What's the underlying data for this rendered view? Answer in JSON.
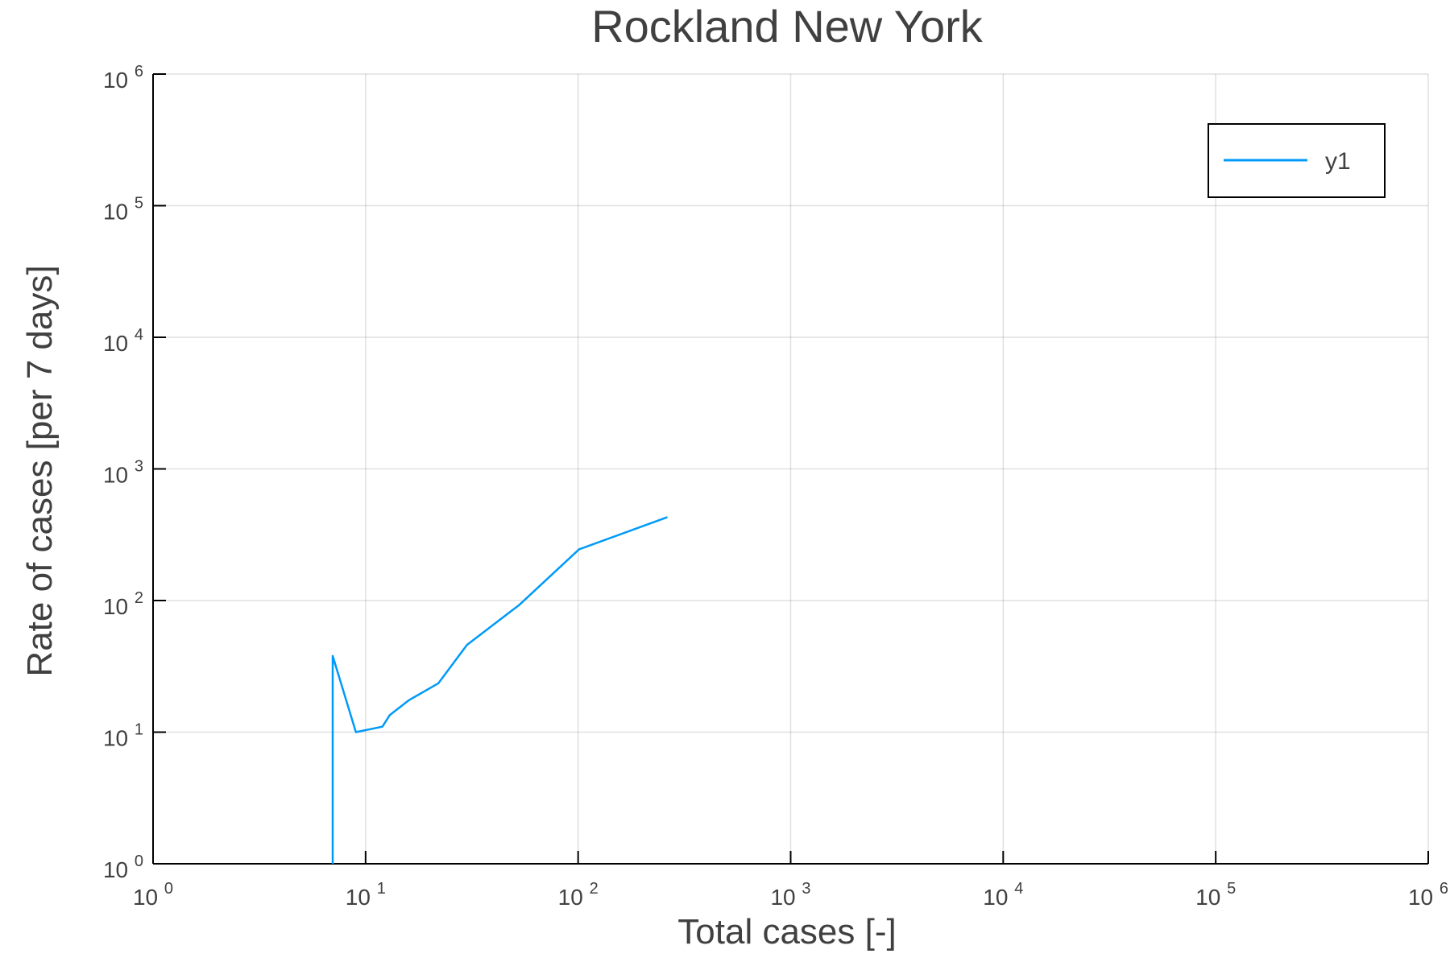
{
  "chart_data": {
    "type": "line",
    "title": "Rockland New York",
    "xlabel": "Total cases [-]",
    "ylabel": "Rate of cases [per 7 days]",
    "xscale": "log",
    "yscale": "log",
    "xlim": [
      1,
      1000000
    ],
    "ylim": [
      1,
      1000000
    ],
    "grid": true,
    "legend_position": "top-right",
    "x_ticks": [
      {
        "base": "10",
        "exp": "0",
        "value": 1
      },
      {
        "base": "10",
        "exp": "1",
        "value": 10
      },
      {
        "base": "10",
        "exp": "2",
        "value": 100
      },
      {
        "base": "10",
        "exp": "3",
        "value": 1000
      },
      {
        "base": "10",
        "exp": "4",
        "value": 10000
      },
      {
        "base": "10",
        "exp": "5",
        "value": 100000
      },
      {
        "base": "10",
        "exp": "6",
        "value": 1000000
      }
    ],
    "y_ticks": [
      {
        "base": "10",
        "exp": "0",
        "value": 1
      },
      {
        "base": "10",
        "exp": "1",
        "value": 10
      },
      {
        "base": "10",
        "exp": "2",
        "value": 100
      },
      {
        "base": "10",
        "exp": "3",
        "value": 1000
      },
      {
        "base": "10",
        "exp": "4",
        "value": 10000
      },
      {
        "base": "10",
        "exp": "5",
        "value": 100000
      },
      {
        "base": "10",
        "exp": "6",
        "value": 1000000
      }
    ],
    "series": [
      {
        "name": "y1",
        "color": "#009af9",
        "x": [
          7,
          7,
          9,
          12,
          13,
          16,
          22,
          30,
          53,
          101,
          263
        ],
        "y": [
          1,
          38,
          10,
          11,
          13.5,
          17.5,
          23.5,
          46,
          93,
          245,
          430
        ]
      }
    ]
  }
}
